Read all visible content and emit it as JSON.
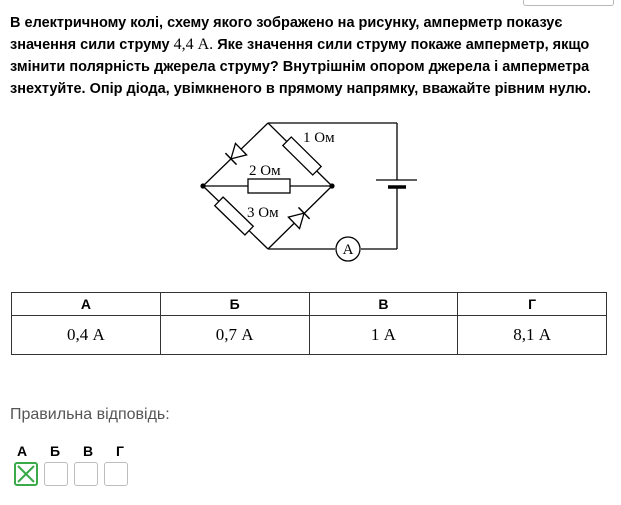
{
  "question": {
    "line1_a": "В електричному колі, схему якого зображено на рисунку, амперметр показує",
    "line2_a": "значення сили струму ",
    "line2_value": "4,4 А.",
    "line2_b": " Яке значення сили струму покаже амперметр, якщо",
    "line3": "змінити полярність джерела струму? Внутрішнім опором джерела і амперметра",
    "line4": "знехтуйте. Опір діода, увімкненого в прямому напрямку, вважайте рівним нулю."
  },
  "circuit": {
    "r1_label": "1 Ом",
    "r2_label": "2 Ом",
    "r3_label": "3 Ом",
    "ammeter_label": "A"
  },
  "answers": {
    "headers": [
      "А",
      "Б",
      "В",
      "Г"
    ],
    "values": [
      "0,4 А",
      "0,7 А",
      "1 А",
      "8,1 А"
    ]
  },
  "response": {
    "label": "Правильна відповідь:",
    "letters": [
      "А",
      "Б",
      "В",
      "Г"
    ],
    "selected": "А"
  }
}
